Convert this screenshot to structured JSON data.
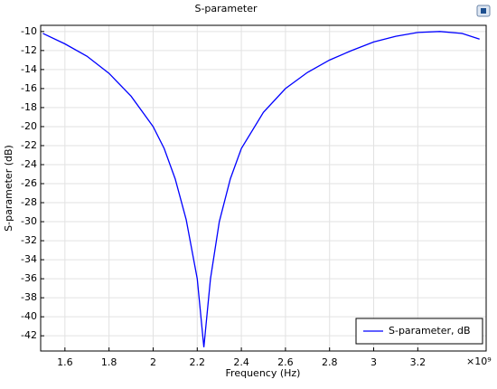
{
  "chart_data": {
    "type": "line",
    "title": "S-parameter",
    "xlabel": "Frequency (Hz)",
    "ylabel": "S-parameter (dB)",
    "x_multiplier": "×10⁹",
    "x": [
      1.5,
      1.6,
      1.7,
      1.8,
      1.9,
      2.0,
      2.05,
      2.1,
      2.15,
      2.2,
      2.23,
      2.26,
      2.3,
      2.35,
      2.4,
      2.5,
      2.6,
      2.7,
      2.8,
      2.9,
      3.0,
      3.1,
      3.2,
      3.3,
      3.4,
      3.48
    ],
    "series": [
      {
        "name": "S-parameter, dB",
        "color": "#0000ff",
        "values": [
          -10.2,
          -11.3,
          -12.6,
          -14.4,
          -16.8,
          -20.0,
          -22.3,
          -25.5,
          -29.8,
          -36.0,
          -43.2,
          -36.0,
          -30.0,
          -25.5,
          -22.3,
          -18.5,
          -16.0,
          -14.3,
          -13.0,
          -12.0,
          -11.1,
          -10.5,
          -10.1,
          -10.0,
          -10.2,
          -10.8
        ]
      }
    ],
    "xlim": [
      1.49,
      3.51
    ],
    "ylim": [
      -43.6,
      -9.35
    ],
    "xticks": [
      1.6,
      1.8,
      2,
      2.2,
      2.4,
      2.6,
      2.8,
      3,
      3.2
    ],
    "yticks": [
      -10,
      -12,
      -14,
      -16,
      -18,
      -20,
      -22,
      -24,
      -26,
      -28,
      -30,
      -32,
      -34,
      -36,
      -38,
      -40,
      -42
    ],
    "grid": true,
    "legend": "lower right"
  }
}
